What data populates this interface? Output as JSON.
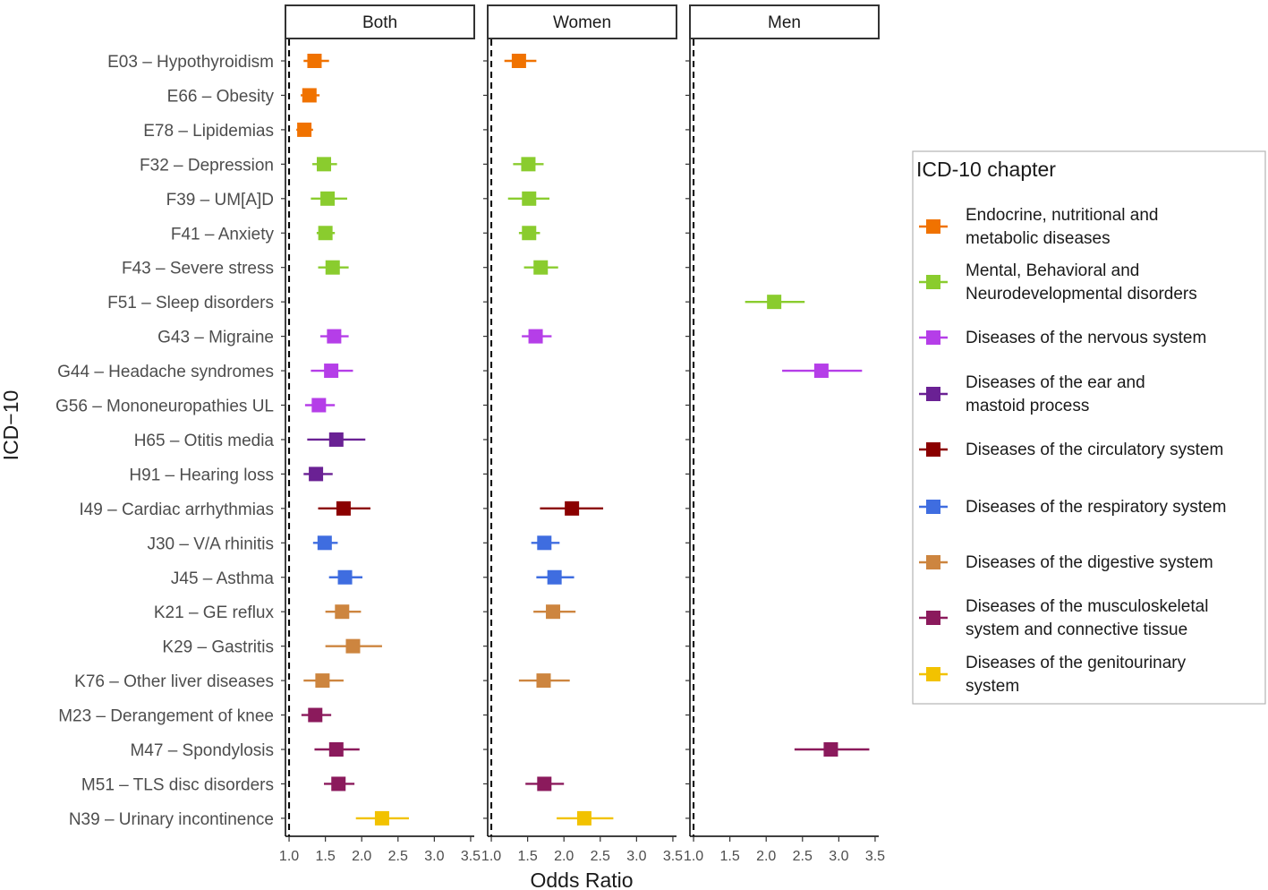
{
  "chart_data": {
    "type": "scatter",
    "subtype": "forest-plot",
    "xlabel": "Odds Ratio",
    "ylabel": "ICD−10",
    "xlim": [
      0.95,
      3.55
    ],
    "xticks": [
      1.0,
      1.5,
      2.0,
      2.5,
      3.0,
      3.5
    ],
    "xtick_labels": [
      "1.0",
      "1.5",
      "2.0",
      "2.5",
      "3.0",
      "3.5"
    ],
    "reference_line": 1.0,
    "panels": [
      "Both",
      "Women",
      "Men"
    ],
    "legend": {
      "title": "ICD-10 chapter",
      "entries": [
        {
          "key": "endo",
          "lines": [
            "Endocrine, nutritional and",
            "metabolic diseases"
          ],
          "color": "#F07200"
        },
        {
          "key": "mental",
          "lines": [
            "Mental, Behavioral and",
            "Neurodevelopmental disorders"
          ],
          "color": "#8ACC2E"
        },
        {
          "key": "nervous",
          "lines": [
            "Diseases of the nervous system"
          ],
          "color": "#B53EE8"
        },
        {
          "key": "ear",
          "lines": [
            "Diseases of the ear and",
            "mastoid process"
          ],
          "color": "#6A2194"
        },
        {
          "key": "circ",
          "lines": [
            "Diseases of the circulatory system"
          ],
          "color": "#8B0000"
        },
        {
          "key": "resp",
          "lines": [
            "Diseases of the respiratory system"
          ],
          "color": "#3F6DE0"
        },
        {
          "key": "dig",
          "lines": [
            "Diseases of the digestive system"
          ],
          "color": "#CD853F"
        },
        {
          "key": "musc",
          "lines": [
            "Diseases of the musculoskeletal",
            "system and connective tissue"
          ],
          "color": "#8B1A5C"
        },
        {
          "key": "geni",
          "lines": [
            "Diseases of the genitourinary",
            "system"
          ],
          "color": "#F2C200"
        }
      ]
    },
    "rows": [
      {
        "label": "E03 – Hypothyroidism",
        "chapter": "endo",
        "both": {
          "or": 1.35,
          "lo": 1.2,
          "hi": 1.55
        },
        "women": {
          "or": 1.38,
          "lo": 1.18,
          "hi": 1.62
        },
        "men": null
      },
      {
        "label": "E66 – Obesity",
        "chapter": "endo",
        "both": {
          "or": 1.28,
          "lo": 1.16,
          "hi": 1.42
        },
        "women": null,
        "men": null
      },
      {
        "label": "E78 – Lipidemias",
        "chapter": "endo",
        "both": {
          "or": 1.21,
          "lo": 1.1,
          "hi": 1.33
        },
        "women": null,
        "men": null
      },
      {
        "label": "F32 – Depression",
        "chapter": "mental",
        "both": {
          "or": 1.48,
          "lo": 1.32,
          "hi": 1.66
        },
        "women": {
          "or": 1.51,
          "lo": 1.3,
          "hi": 1.72
        },
        "men": null
      },
      {
        "label": "F39 – UM[A]D",
        "chapter": "mental",
        "both": {
          "or": 1.53,
          "lo": 1.3,
          "hi": 1.8
        },
        "women": {
          "or": 1.52,
          "lo": 1.23,
          "hi": 1.8
        },
        "men": null
      },
      {
        "label": "F41 – Anxiety",
        "chapter": "mental",
        "both": {
          "or": 1.5,
          "lo": 1.38,
          "hi": 1.63
        },
        "women": {
          "or": 1.52,
          "lo": 1.38,
          "hi": 1.67
        },
        "men": null
      },
      {
        "label": "F43 – Severe stress",
        "chapter": "mental",
        "both": {
          "or": 1.6,
          "lo": 1.4,
          "hi": 1.82
        },
        "women": {
          "or": 1.68,
          "lo": 1.45,
          "hi": 1.92
        },
        "men": null
      },
      {
        "label": "F51 – Sleep disorders",
        "chapter": "mental",
        "both": null,
        "women": null,
        "men": {
          "or": 2.11,
          "lo": 1.71,
          "hi": 2.53
        }
      },
      {
        "label": "G43 – Migraine",
        "chapter": "nervous",
        "both": {
          "or": 1.62,
          "lo": 1.43,
          "hi": 1.82
        },
        "women": {
          "or": 1.61,
          "lo": 1.42,
          "hi": 1.83
        },
        "men": null
      },
      {
        "label": "G44 – Headache syndromes",
        "chapter": "nervous",
        "both": {
          "or": 1.58,
          "lo": 1.3,
          "hi": 1.88
        },
        "women": null,
        "men": {
          "or": 2.76,
          "lo": 2.22,
          "hi": 3.32
        }
      },
      {
        "label": "G56 – Mononeuropathies UL",
        "chapter": "nervous",
        "both": {
          "or": 1.41,
          "lo": 1.22,
          "hi": 1.63
        },
        "women": null,
        "men": null
      },
      {
        "label": "H65 – Otitis media",
        "chapter": "ear",
        "both": {
          "or": 1.65,
          "lo": 1.25,
          "hi": 2.05
        },
        "women": null,
        "men": null
      },
      {
        "label": "H91 – Hearing loss",
        "chapter": "ear",
        "both": {
          "or": 1.37,
          "lo": 1.2,
          "hi": 1.6
        },
        "women": null,
        "men": null
      },
      {
        "label": "I49 – Cardiac arrhythmias",
        "chapter": "circ",
        "both": {
          "or": 1.75,
          "lo": 1.4,
          "hi": 2.12
        },
        "women": {
          "or": 2.11,
          "lo": 1.67,
          "hi": 2.54
        },
        "men": null
      },
      {
        "label": "J30 – V/A rhinitis",
        "chapter": "resp",
        "both": {
          "or": 1.49,
          "lo": 1.33,
          "hi": 1.67
        },
        "women": {
          "or": 1.73,
          "lo": 1.55,
          "hi": 1.94
        },
        "men": null
      },
      {
        "label": "J45 – Asthma",
        "chapter": "resp",
        "both": {
          "or": 1.77,
          "lo": 1.55,
          "hi": 2.01
        },
        "women": {
          "or": 1.87,
          "lo": 1.62,
          "hi": 2.14
        },
        "men": null
      },
      {
        "label": "K21 – GE reflux",
        "chapter": "dig",
        "both": {
          "or": 1.73,
          "lo": 1.5,
          "hi": 1.99
        },
        "women": {
          "or": 1.85,
          "lo": 1.58,
          "hi": 2.16
        },
        "men": null
      },
      {
        "label": "K29 – Gastritis",
        "chapter": "dig",
        "both": {
          "or": 1.88,
          "lo": 1.5,
          "hi": 2.28
        },
        "women": null,
        "men": null
      },
      {
        "label": "K76 – Other liver diseases",
        "chapter": "dig",
        "both": {
          "or": 1.46,
          "lo": 1.2,
          "hi": 1.75
        },
        "women": {
          "or": 1.72,
          "lo": 1.38,
          "hi": 2.08
        },
        "men": null
      },
      {
        "label": "M23 – Derangement of knee",
        "chapter": "musc",
        "both": {
          "or": 1.36,
          "lo": 1.17,
          "hi": 1.58
        },
        "women": null,
        "men": null
      },
      {
        "label": "M47 – Spondylosis",
        "chapter": "musc",
        "both": {
          "or": 1.65,
          "lo": 1.35,
          "hi": 1.97
        },
        "women": null,
        "men": {
          "or": 2.89,
          "lo": 2.39,
          "hi": 3.42
        }
      },
      {
        "label": "M51 – TLS disc disorders",
        "chapter": "musc",
        "both": {
          "or": 1.68,
          "lo": 1.48,
          "hi": 1.9
        },
        "women": {
          "or": 1.73,
          "lo": 1.47,
          "hi": 2.0
        },
        "men": null
      },
      {
        "label": "N39 – Urinary incontinence",
        "chapter": "geni",
        "both": {
          "or": 2.28,
          "lo": 1.92,
          "hi": 2.65
        },
        "women": {
          "or": 2.28,
          "lo": 1.9,
          "hi": 2.68
        },
        "men": null
      }
    ]
  }
}
